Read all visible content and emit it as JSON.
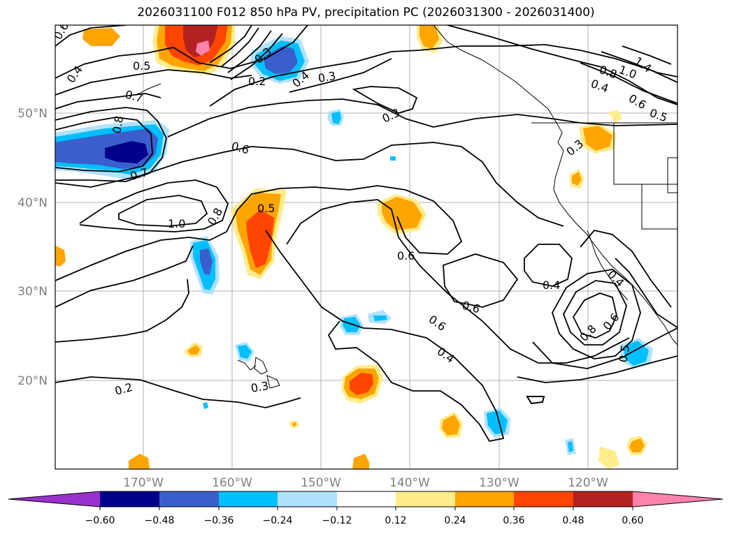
{
  "title": "2026031100 F012 850 hPa PV, precipitation PC (2026031300 - 2026031400)",
  "latitude_labels": [
    "50°N",
    "40°N",
    "30°N",
    "20°N"
  ],
  "longitude_labels": [
    "170°W",
    "160°W",
    "150°W",
    "140°W",
    "130°W",
    "120°W"
  ],
  "contour_labels": [
    "0.6",
    "0.5",
    "0.4",
    "0.7",
    "0.8",
    "0.7",
    "1.0",
    "0.8",
    "0.5",
    "0.6",
    "0.3",
    "0.3",
    "0.6",
    "0.3",
    "0.6",
    "0.4",
    "0.6",
    "0.4",
    "0.3",
    "0.2",
    "0.2",
    "0.8",
    "0.6",
    "0.5",
    "0.4",
    "0.8",
    "1.0",
    "1.4",
    "0.4",
    "0.6",
    "0.5",
    "0.3",
    "0.4"
  ],
  "colorbar": {
    "ticks": [
      "−0.60",
      "−0.48",
      "−0.36",
      "−0.24",
      "−0.12",
      "0.12",
      "0.24",
      "0.36",
      "0.48",
      "0.60"
    ],
    "colors": [
      "#9932cc",
      "#00008b",
      "#3a5fcd",
      "#00bfff",
      "#b0e2ff",
      "#ffffff",
      "#ffec8b",
      "#ffa500",
      "#ff4500",
      "#b22222",
      "#ff82ab"
    ]
  },
  "colors": {
    "precip_strong_neg": "#00008b",
    "precip_neg": "#3a5fcd",
    "precip_mid_neg": "#00bfff",
    "precip_weak_neg": "#b0e2ff",
    "precip_weak_pos": "#ffec8b",
    "precip_pos": "#ffa500",
    "precip_mid_pos": "#ff4500",
    "precip_strong_pos": "#b22222",
    "precip_max_pos": "#ff82ab",
    "gridline": "#b0b0b0",
    "contour": "#000000",
    "coastline": "#000000"
  }
}
